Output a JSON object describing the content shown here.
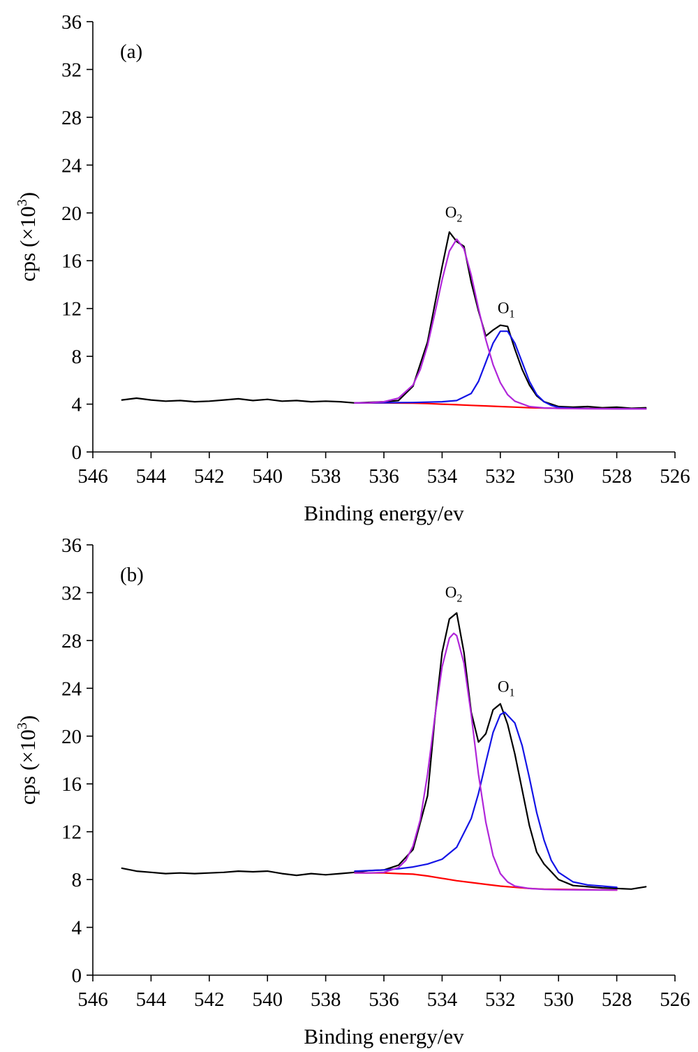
{
  "chart_data": [
    {
      "type": "line",
      "panel_label": "(a)",
      "xlabel": "Binding energy/ev",
      "ylabel_base": "cps (×10",
      "ylabel_exp": "3",
      "ylabel_close": ")",
      "xlim": [
        546,
        526
      ],
      "ylim": [
        0,
        36
      ],
      "x_reversed": true,
      "x_ticks": [
        "546",
        "544",
        "542",
        "540",
        "538",
        "536",
        "534",
        "532",
        "530",
        "528",
        "526"
      ],
      "y_ticks": [
        "0",
        "4",
        "8",
        "12",
        "16",
        "20",
        "24",
        "28",
        "32",
        "36"
      ],
      "annotations": [
        {
          "base": "O",
          "sub": "2",
          "x": 533.6,
          "y": 19.6
        },
        {
          "base": "O",
          "sub": "1",
          "x": 531.8,
          "y": 11.6
        }
      ],
      "colors": {
        "raw": "#000000",
        "background": "#ff0000",
        "o2_fit": "#b026d9",
        "o1_fit": "#1414e6"
      },
      "series": [
        {
          "key": "raw",
          "x": [
            545,
            544.5,
            544,
            543.5,
            543,
            542.5,
            542,
            541.5,
            541,
            540.5,
            540,
            539.5,
            539,
            538.5,
            538,
            537.5,
            537,
            536.5,
            536,
            535.5,
            535,
            534.5,
            534,
            533.75,
            533.5,
            533.25,
            533,
            532.75,
            532.5,
            532.25,
            532,
            531.75,
            531.5,
            531.25,
            531,
            530.75,
            530.5,
            530,
            529.5,
            529,
            528.5,
            528,
            527.5,
            527
          ],
          "y": [
            4.35,
            4.5,
            4.35,
            4.25,
            4.3,
            4.2,
            4.25,
            4.35,
            4.45,
            4.3,
            4.4,
            4.25,
            4.3,
            4.2,
            4.25,
            4.2,
            4.1,
            4.15,
            4.2,
            4.3,
            5.5,
            9.2,
            15.5,
            18.4,
            17.6,
            17.2,
            14.2,
            11.8,
            9.7,
            10.2,
            10.6,
            10.5,
            8.6,
            6.9,
            5.6,
            4.7,
            4.2,
            3.8,
            3.75,
            3.8,
            3.7,
            3.75,
            3.65,
            3.7
          ]
        },
        {
          "key": "background",
          "x": [
            537,
            536.5,
            536,
            535.5,
            535,
            534.5,
            534,
            533.5,
            533,
            532.5,
            532,
            531.5,
            531,
            530.5,
            530,
            529,
            528,
            527
          ],
          "y": [
            4.1,
            4.1,
            4.1,
            4.09,
            4.08,
            4.05,
            4.0,
            3.95,
            3.9,
            3.85,
            3.8,
            3.75,
            3.7,
            3.67,
            3.65,
            3.63,
            3.62,
            3.6
          ]
        },
        {
          "key": "o2_fit",
          "x": [
            537,
            536.5,
            536,
            535.5,
            535,
            534.75,
            534.5,
            534.25,
            534,
            533.75,
            533.5,
            533.25,
            533,
            532.75,
            532.5,
            532.25,
            532,
            531.75,
            531.5,
            531,
            530.5,
            530,
            529,
            528,
            527
          ],
          "y": [
            4.1,
            4.12,
            4.2,
            4.5,
            5.6,
            6.9,
            8.9,
            11.6,
            14.4,
            16.8,
            17.8,
            17.0,
            14.8,
            12.0,
            9.4,
            7.3,
            5.8,
            4.8,
            4.25,
            3.8,
            3.68,
            3.64,
            3.62,
            3.61,
            3.6
          ]
        },
        {
          "key": "o1_fit",
          "x": [
            537,
            536,
            535,
            534,
            533.5,
            533,
            532.75,
            532.5,
            532.25,
            532,
            531.75,
            531.5,
            531.25,
            531,
            530.75,
            530.5,
            530.25,
            530,
            529.5,
            529,
            528,
            527
          ],
          "y": [
            4.1,
            4.12,
            4.14,
            4.2,
            4.3,
            4.9,
            5.9,
            7.5,
            9.1,
            10.1,
            10.1,
            9.1,
            7.5,
            5.9,
            4.8,
            4.2,
            3.9,
            3.72,
            3.65,
            3.63,
            3.61,
            3.6
          ]
        }
      ]
    },
    {
      "type": "line",
      "panel_label": "(b)",
      "xlabel": "Binding energy/ev",
      "ylabel_base": "cps (×10",
      "ylabel_exp": "3",
      "ylabel_close": ")",
      "xlim": [
        546,
        526
      ],
      "ylim": [
        0,
        36
      ],
      "x_reversed": true,
      "x_ticks": [
        "546",
        "544",
        "542",
        "540",
        "538",
        "536",
        "534",
        "532",
        "530",
        "528",
        "526"
      ],
      "y_ticks": [
        "0",
        "4",
        "8",
        "12",
        "16",
        "20",
        "24",
        "28",
        "32",
        "36"
      ],
      "annotations": [
        {
          "base": "O",
          "sub": "2",
          "x": 533.6,
          "y": 31.6
        },
        {
          "base": "O",
          "sub": "1",
          "x": 531.8,
          "y": 23.7
        }
      ],
      "colors": {
        "raw": "#000000",
        "background": "#ff0000",
        "o2_fit": "#b026d9",
        "o1_fit": "#1414e6"
      },
      "series": [
        {
          "key": "raw",
          "x": [
            545,
            544.5,
            544,
            543.5,
            543,
            542.5,
            542,
            541.5,
            541,
            540.5,
            540,
            539.5,
            539,
            538.5,
            538,
            537.5,
            537,
            536.5,
            536,
            535.5,
            535,
            534.5,
            534.25,
            534,
            533.75,
            533.5,
            533.25,
            533,
            532.75,
            532.5,
            532.25,
            532,
            531.75,
            531.5,
            531.25,
            531,
            530.75,
            530.5,
            530,
            529.5,
            529,
            528.5,
            528,
            527.5,
            527
          ],
          "y": [
            8.95,
            8.7,
            8.6,
            8.5,
            8.55,
            8.5,
            8.55,
            8.6,
            8.7,
            8.65,
            8.7,
            8.5,
            8.35,
            8.5,
            8.4,
            8.5,
            8.6,
            8.75,
            8.8,
            9.2,
            10.5,
            15.0,
            21.5,
            27.0,
            29.8,
            30.3,
            27.0,
            22.0,
            19.5,
            20.2,
            22.2,
            22.7,
            21.0,
            18.5,
            15.5,
            12.5,
            10.3,
            9.3,
            8.0,
            7.5,
            7.4,
            7.3,
            7.25,
            7.2,
            7.4
          ]
        },
        {
          "key": "background",
          "x": [
            537,
            536.5,
            536,
            535.5,
            535,
            534.5,
            534,
            533.5,
            533,
            532.5,
            532,
            531.5,
            531,
            530.5,
            530,
            529,
            528
          ],
          "y": [
            8.55,
            8.55,
            8.55,
            8.5,
            8.45,
            8.3,
            8.1,
            7.9,
            7.75,
            7.6,
            7.45,
            7.35,
            7.25,
            7.2,
            7.18,
            7.15,
            7.12
          ]
        },
        {
          "key": "o2_fit",
          "x": [
            537,
            536.5,
            536,
            535.5,
            535.25,
            535,
            534.75,
            534.5,
            534.25,
            534,
            533.75,
            533.6,
            533.5,
            533.25,
            533,
            532.75,
            532.5,
            532.25,
            532,
            531.75,
            531.5,
            531,
            530.5,
            530,
            529,
            528
          ],
          "y": [
            8.55,
            8.55,
            8.6,
            9.0,
            9.6,
            10.8,
            13.0,
            16.8,
            21.6,
            25.8,
            28.2,
            28.6,
            28.4,
            26.1,
            21.8,
            16.8,
            12.8,
            10.0,
            8.5,
            7.8,
            7.45,
            7.25,
            7.18,
            7.15,
            7.13,
            7.12
          ]
        },
        {
          "key": "o1_fit",
          "x": [
            537,
            536,
            535.5,
            535,
            534.5,
            534,
            533.5,
            533,
            532.75,
            532.5,
            532.25,
            532,
            531.85,
            531.5,
            531.25,
            531,
            530.75,
            530.5,
            530.25,
            530,
            529.5,
            529,
            528.5,
            528
          ],
          "y": [
            8.7,
            8.8,
            8.9,
            9.05,
            9.3,
            9.7,
            10.7,
            13.1,
            15.2,
            17.8,
            20.3,
            21.8,
            22.0,
            21.1,
            19.2,
            16.5,
            13.6,
            11.3,
            9.6,
            8.6,
            7.8,
            7.55,
            7.45,
            7.35
          ]
        }
      ]
    }
  ]
}
